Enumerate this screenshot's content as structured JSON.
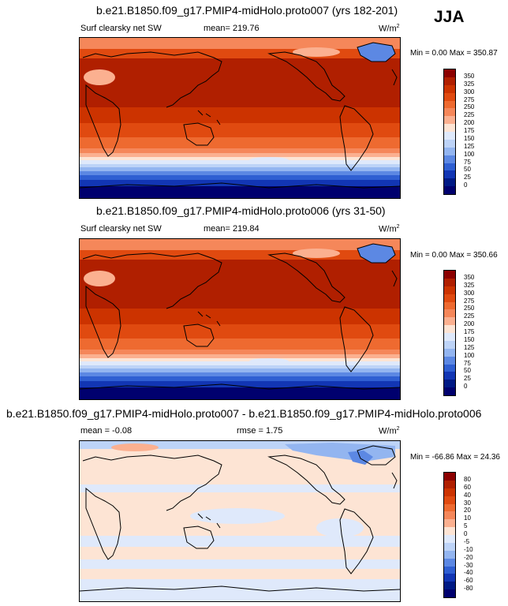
{
  "season": "JJA",
  "panels": [
    {
      "title": "b.e21.B1850.f09_g17.PMIP4-midHolo.proto007 (yrs 182-201)",
      "variable": "Surf clearsky net SW",
      "stat": "mean= 219.76",
      "units": "W/m",
      "units_exp": "2",
      "minmax": "Min =   0.00 Max = 350.87",
      "levels": [
        "350",
        "325",
        "300",
        "275",
        "250",
        "225",
        "200",
        "175",
        "150",
        "125",
        "100",
        "75",
        "50",
        "25",
        "0"
      ]
    },
    {
      "title": "b.e21.B1850.f09_g17.PMIP4-midHolo.proto006 (yrs 31-50)",
      "variable": "Surf clearsky net SW",
      "stat": "mean= 219.84",
      "units": "W/m",
      "units_exp": "2",
      "minmax": "Min =   0.00 Max = 350.66",
      "levels": [
        "350",
        "325",
        "300",
        "275",
        "250",
        "225",
        "200",
        "175",
        "150",
        "125",
        "100",
        "75",
        "50",
        "25",
        "0"
      ]
    },
    {
      "title": "b.e21.B1850.f09_g17.PMIP4-midHolo.proto007 - b.e21.B1850.f09_g17.PMIP4-midHolo.proto006",
      "mean": "mean =  -0.08",
      "rmse": "rmse =   1.75",
      "units": "W/m",
      "units_exp": "2",
      "minmax": "Min = -66.86 Max =  24.36",
      "levels": [
        "80",
        "60",
        "40",
        "30",
        "20",
        "10",
        "5",
        "0",
        "-5",
        "-10",
        "-20",
        "-30",
        "-40",
        "-60",
        "-80"
      ]
    }
  ],
  "colors": {
    "seq": [
      "#8c0000",
      "#b01f00",
      "#cc3300",
      "#e04a10",
      "#ee6a30",
      "#f5875a",
      "#fbb090",
      "#fde4d4",
      "#dfe9fb",
      "#bdd3f7",
      "#93b5f0",
      "#5c88e3",
      "#2f5fd2",
      "#1236b4",
      "#001a85",
      "#00006e"
    ],
    "div": [
      "#8c0000",
      "#b01f00",
      "#cc3300",
      "#e04a10",
      "#ee6a30",
      "#f5875a",
      "#fbb090",
      "#fde4d4",
      "#dfe9fb",
      "#bdd3f7",
      "#93b5f0",
      "#5c88e3",
      "#2f5fd2",
      "#1236b4",
      "#001a85",
      "#00006e"
    ]
  }
}
